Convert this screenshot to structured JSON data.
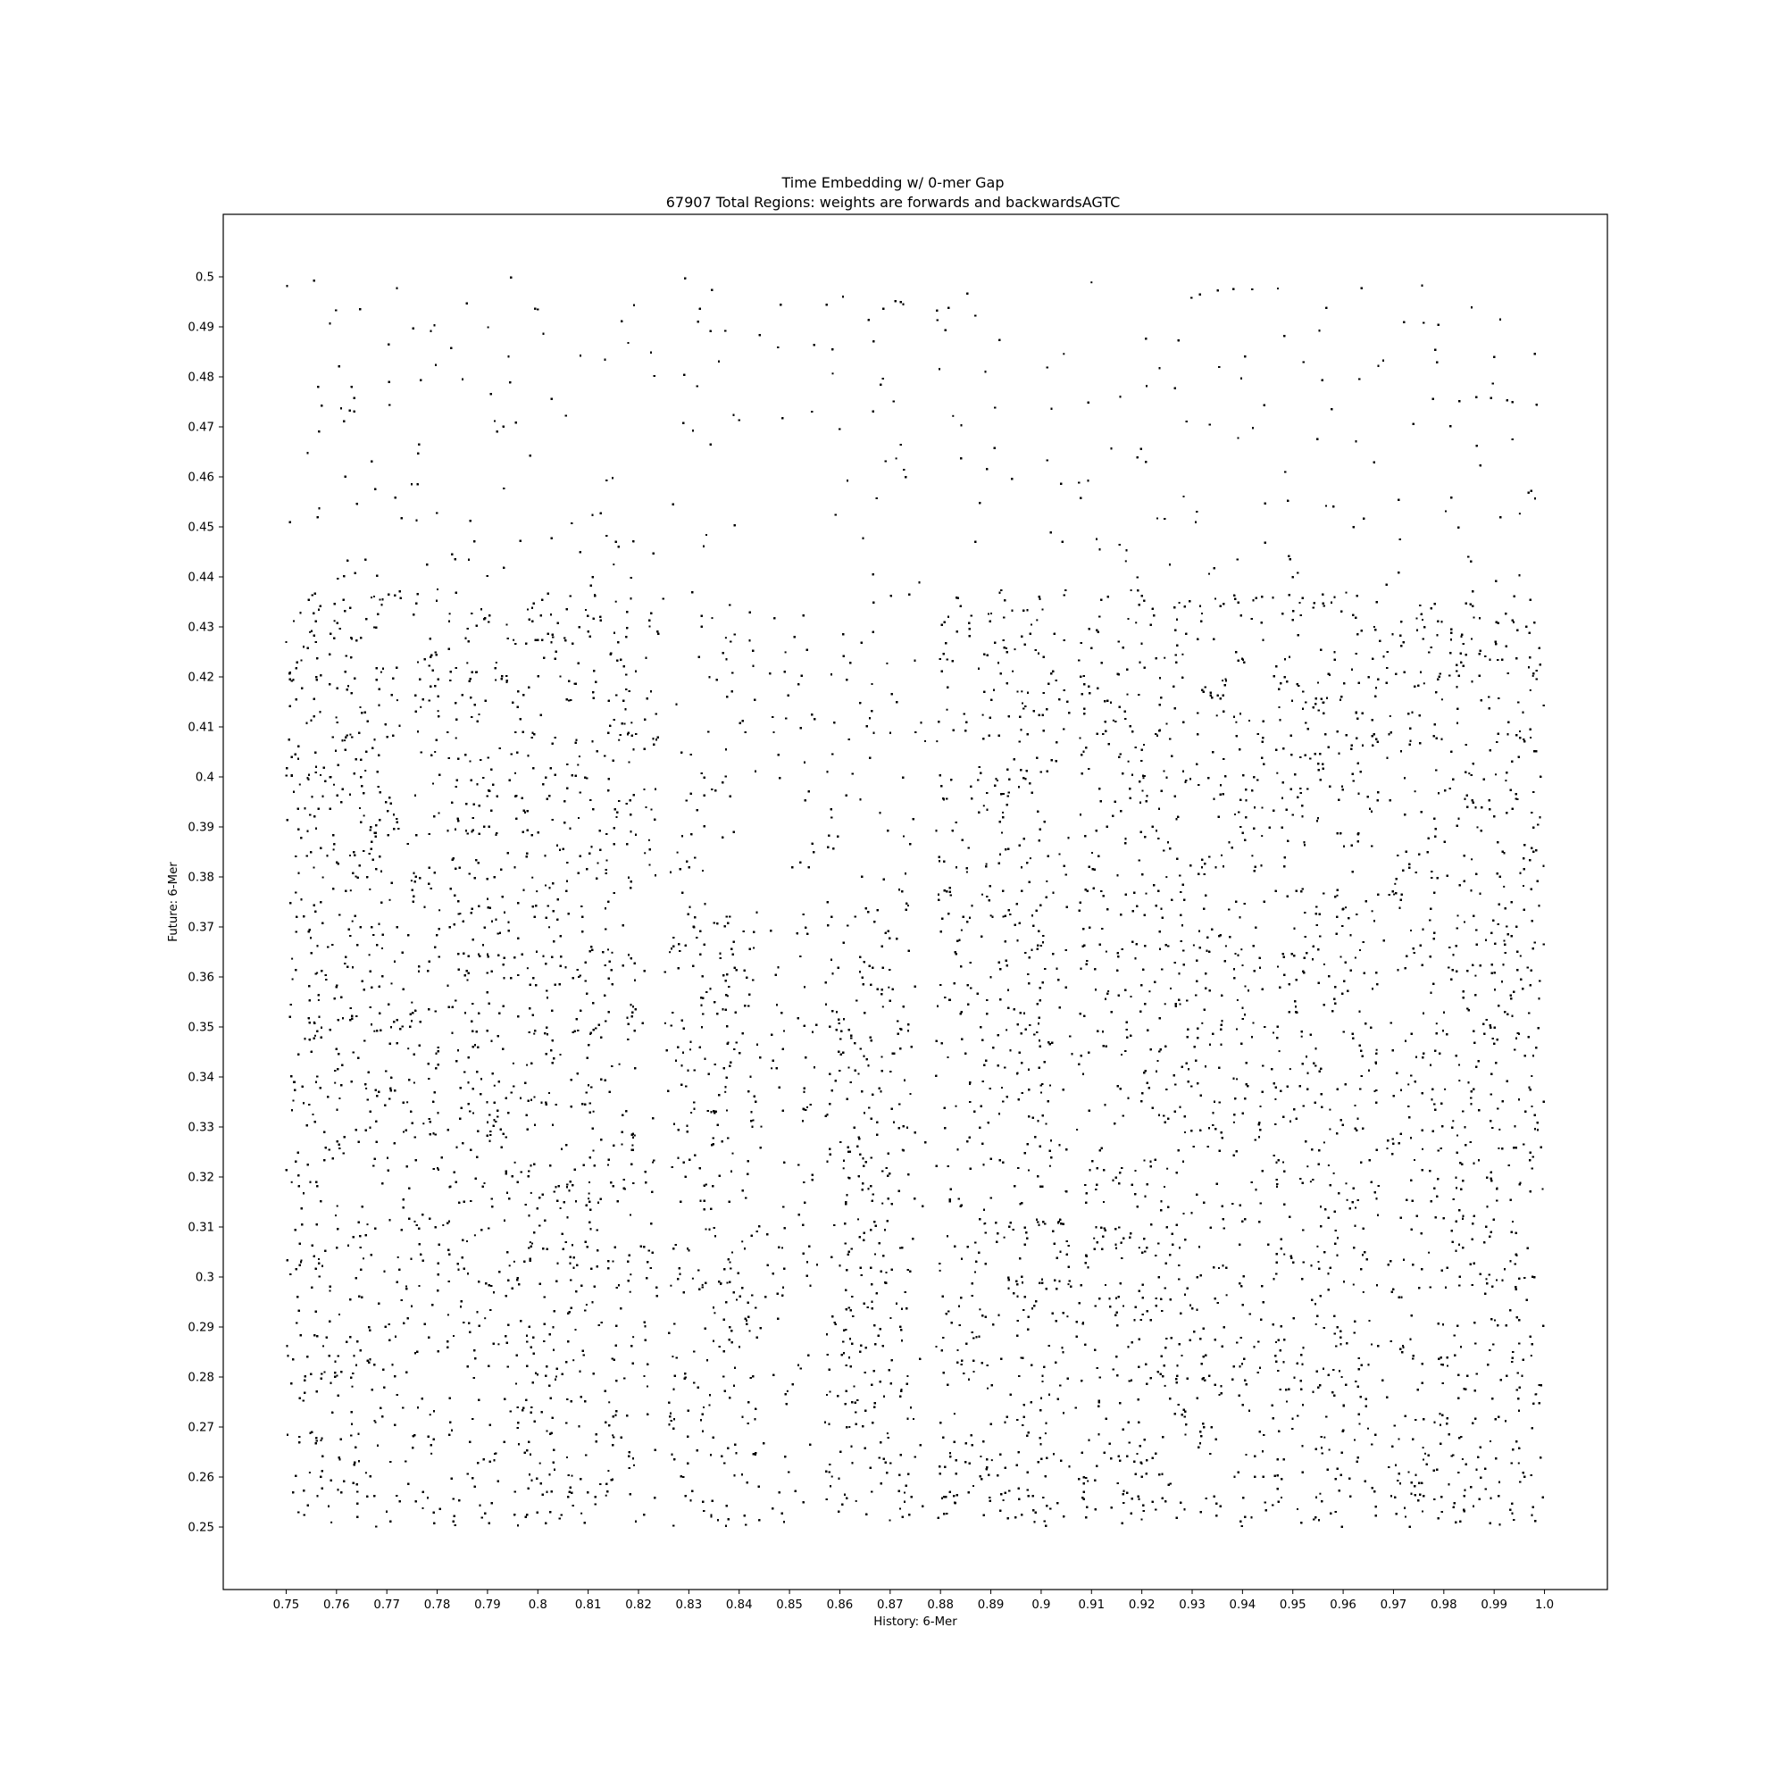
{
  "chart_data": {
    "type": "scatter",
    "title": "Time Embedding w/ 0-mer Gap",
    "subtitle": "67907 Total Regions: weights are forwards and backwardsAGTC",
    "xlabel": "History: 6-Mer",
    "ylabel": "Future: 6-Mer",
    "xlim": [
      0.7375,
      1.0125
    ],
    "ylim": [
      0.2375,
      0.5125
    ],
    "x_ticks": [
      "0.75",
      "0.76",
      "0.77",
      "0.78",
      "0.79",
      "0.8",
      "0.81",
      "0.82",
      "0.83",
      "0.84",
      "0.85",
      "0.86",
      "0.87",
      "0.88",
      "0.89",
      "0.9",
      "0.91",
      "0.92",
      "0.93",
      "0.94",
      "0.95",
      "0.96",
      "0.97",
      "0.98",
      "0.99",
      "1.0"
    ],
    "y_ticks": [
      "0.25",
      "0.26",
      "0.27",
      "0.28",
      "0.29",
      "0.3",
      "0.31",
      "0.32",
      "0.33",
      "0.34",
      "0.35",
      "0.36",
      "0.37",
      "0.38",
      "0.39",
      "0.4",
      "0.41",
      "0.42",
      "0.43",
      "0.44",
      "0.45",
      "0.46",
      "0.47",
      "0.48",
      "0.49",
      "0.5"
    ],
    "point_count": 67907,
    "x_range": [
      0.75,
      1.0
    ],
    "y_range": [
      0.25,
      0.5
    ],
    "marker_color": "#000000",
    "grid": false,
    "legend": "none",
    "x_sparse_bands": [
      [
        0.7805,
        0.782
      ],
      [
        0.8195,
        0.821
      ],
      [
        0.8245,
        0.826
      ],
      [
        0.8445,
        0.846
      ],
      [
        0.8495,
        0.851
      ],
      [
        0.8555,
        0.857
      ],
      [
        0.875,
        0.879
      ],
      [
        0.906,
        0.9075
      ],
      [
        0.9445,
        0.946
      ],
      [
        0.967,
        0.9685
      ]
    ],
    "y_sparse_bands": [
      [
        0.4375,
        0.5
      ],
      [
        0.3755,
        0.376
      ],
      [
        0.3125,
        0.3135
      ]
    ],
    "dense_blocks": [
      {
        "x": [
          0.75,
          0.7805
        ],
        "y": [
          0.25,
          0.4375
        ]
      },
      {
        "x": [
          0.782,
          0.8195
        ],
        "y": [
          0.25,
          0.4375
        ]
      },
      {
        "x": [
          0.8255,
          0.8445
        ],
        "y": [
          0.25,
          0.3755
        ]
      },
      {
        "x": [
          0.8575,
          0.875
        ],
        "y": [
          0.25,
          0.3755
        ]
      },
      {
        "x": [
          0.875,
          0.9065
        ],
        "y": [
          0.25,
          0.4375
        ]
      },
      {
        "x": [
          0.9075,
          0.9445
        ],
        "y": [
          0.25,
          0.4375
        ]
      },
      {
        "x": [
          0.946,
          0.967
        ],
        "y": [
          0.25,
          0.4375
        ]
      },
      {
        "x": [
          0.969,
          1.0
        ],
        "y": [
          0.25,
          0.4375
        ]
      }
    ],
    "light_blocks": [
      {
        "x": [
          0.8255,
          0.875
        ],
        "y": [
          0.3755,
          0.4375
        ]
      },
      {
        "x": [
          0.75,
          1.0
        ],
        "y": [
          0.4375,
          0.5
        ]
      }
    ]
  }
}
